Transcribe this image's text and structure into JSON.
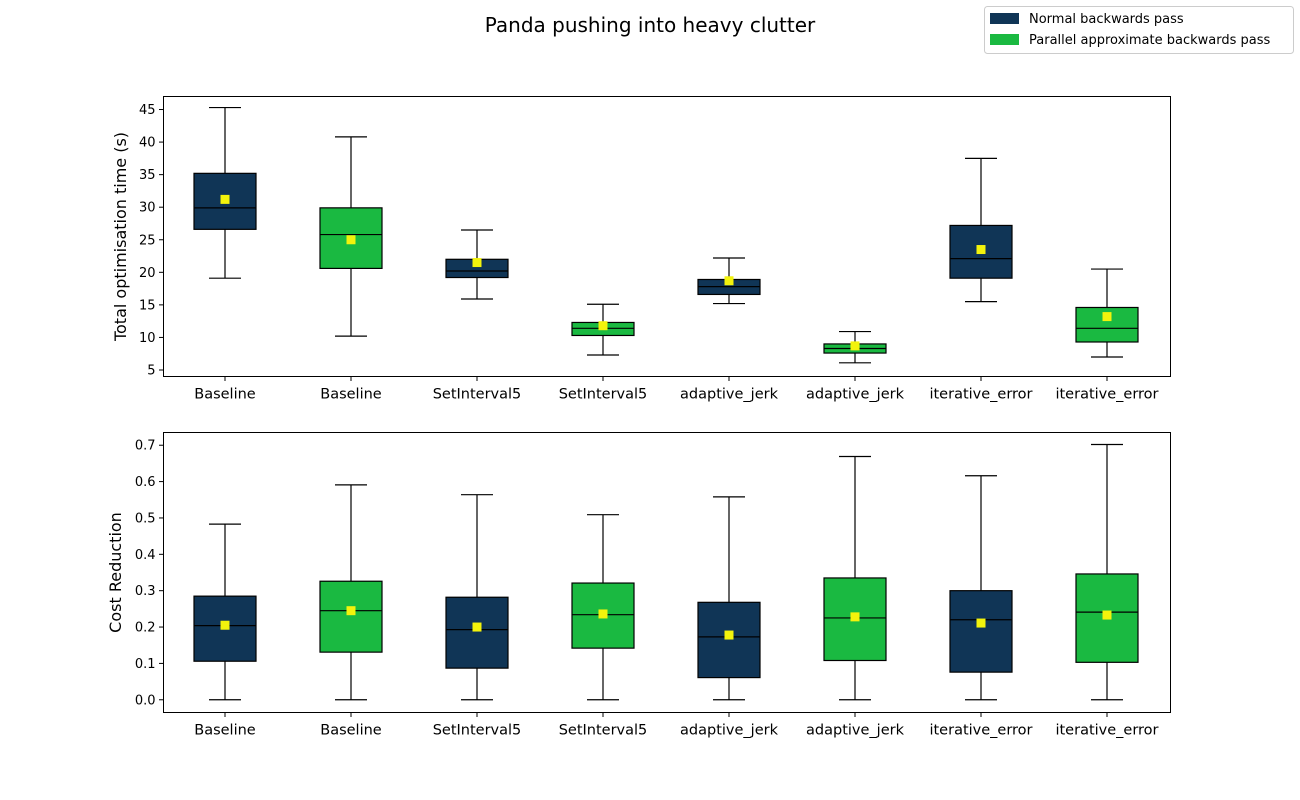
{
  "figure": {
    "title": "Panda pushing into heavy clutter"
  },
  "legend": {
    "placement": "top-right",
    "entries": [
      {
        "label": "Normal backwards pass",
        "color": "#103556"
      },
      {
        "label": "Parallel approximate backwards pass",
        "color": "#1ab941"
      }
    ]
  },
  "colors": {
    "normal": "#103556",
    "parallel": "#1ab941",
    "mean_marker": "#f3f30c"
  },
  "chart_data": [
    {
      "type": "box",
      "ylabel": "Total optimisation time (s)",
      "ylim": [
        4.0,
        47.0
      ],
      "yticks": [
        5,
        10,
        15,
        20,
        25,
        30,
        35,
        40,
        45
      ],
      "categories": [
        "Baseline",
        "Baseline",
        "SetInterval5",
        "SetInterval5",
        "adaptive_jerk",
        "adaptive_jerk",
        "iterative_error",
        "iterative_error"
      ],
      "series_per_box": [
        "Normal backwards pass",
        "Parallel approximate backwards pass",
        "Normal backwards pass",
        "Parallel approximate backwards pass",
        "Normal backwards pass",
        "Parallel approximate backwards pass",
        "Normal backwards pass",
        "Parallel approximate backwards pass"
      ],
      "boxes": [
        {
          "whisker_low": 19.1,
          "q1": 26.6,
          "median": 29.9,
          "q3": 35.2,
          "whisker_high": 45.3,
          "mean": 31.2
        },
        {
          "whisker_low": 10.2,
          "q1": 20.6,
          "median": 25.8,
          "q3": 29.9,
          "whisker_high": 40.8,
          "mean": 25.0
        },
        {
          "whisker_low": 15.9,
          "q1": 19.2,
          "median": 20.2,
          "q3": 22.0,
          "whisker_high": 26.5,
          "mean": 21.5
        },
        {
          "whisker_low": 7.3,
          "q1": 10.3,
          "median": 11.4,
          "q3": 12.3,
          "whisker_high": 15.1,
          "mean": 11.8
        },
        {
          "whisker_low": 15.2,
          "q1": 16.6,
          "median": 17.8,
          "q3": 18.9,
          "whisker_high": 22.2,
          "mean": 18.7
        },
        {
          "whisker_low": 6.1,
          "q1": 7.6,
          "median": 8.3,
          "q3": 9.0,
          "whisker_high": 10.9,
          "mean": 8.7
        },
        {
          "whisker_low": 15.5,
          "q1": 19.1,
          "median": 22.1,
          "q3": 27.2,
          "whisker_high": 37.5,
          "mean": 23.5
        },
        {
          "whisker_low": 7.0,
          "q1": 9.3,
          "median": 11.4,
          "q3": 14.6,
          "whisker_high": 20.5,
          "mean": 13.2
        }
      ]
    },
    {
      "type": "box",
      "ylabel": "Cost Reduction",
      "ylim": [
        -0.035,
        0.735
      ],
      "yticks": [
        0.0,
        0.1,
        0.2,
        0.3,
        0.4,
        0.5,
        0.6,
        0.7
      ],
      "categories": [
        "Baseline",
        "Baseline",
        "SetInterval5",
        "SetInterval5",
        "adaptive_jerk",
        "adaptive_jerk",
        "iterative_error",
        "iterative_error"
      ],
      "series_per_box": [
        "Normal backwards pass",
        "Parallel approximate backwards pass",
        "Normal backwards pass",
        "Parallel approximate backwards pass",
        "Normal backwards pass",
        "Parallel approximate backwards pass",
        "Normal backwards pass",
        "Parallel approximate backwards pass"
      ],
      "boxes": [
        {
          "whisker_low": 0.0,
          "q1": 0.106,
          "median": 0.204,
          "q3": 0.285,
          "whisker_high": 0.483,
          "mean": 0.205
        },
        {
          "whisker_low": 0.0,
          "q1": 0.131,
          "median": 0.245,
          "q3": 0.326,
          "whisker_high": 0.591,
          "mean": 0.245
        },
        {
          "whisker_low": 0.0,
          "q1": 0.087,
          "median": 0.193,
          "q3": 0.282,
          "whisker_high": 0.564,
          "mean": 0.2
        },
        {
          "whisker_low": 0.0,
          "q1": 0.142,
          "median": 0.234,
          "q3": 0.321,
          "whisker_high": 0.509,
          "mean": 0.236
        },
        {
          "whisker_low": 0.0,
          "q1": 0.061,
          "median": 0.173,
          "q3": 0.268,
          "whisker_high": 0.558,
          "mean": 0.178
        },
        {
          "whisker_low": 0.0,
          "q1": 0.108,
          "median": 0.225,
          "q3": 0.335,
          "whisker_high": 0.669,
          "mean": 0.228
        },
        {
          "whisker_low": 0.0,
          "q1": 0.076,
          "median": 0.22,
          "q3": 0.3,
          "whisker_high": 0.616,
          "mean": 0.211
        },
        {
          "whisker_low": 0.0,
          "q1": 0.103,
          "median": 0.241,
          "q3": 0.346,
          "whisker_high": 0.702,
          "mean": 0.233
        }
      ]
    }
  ]
}
